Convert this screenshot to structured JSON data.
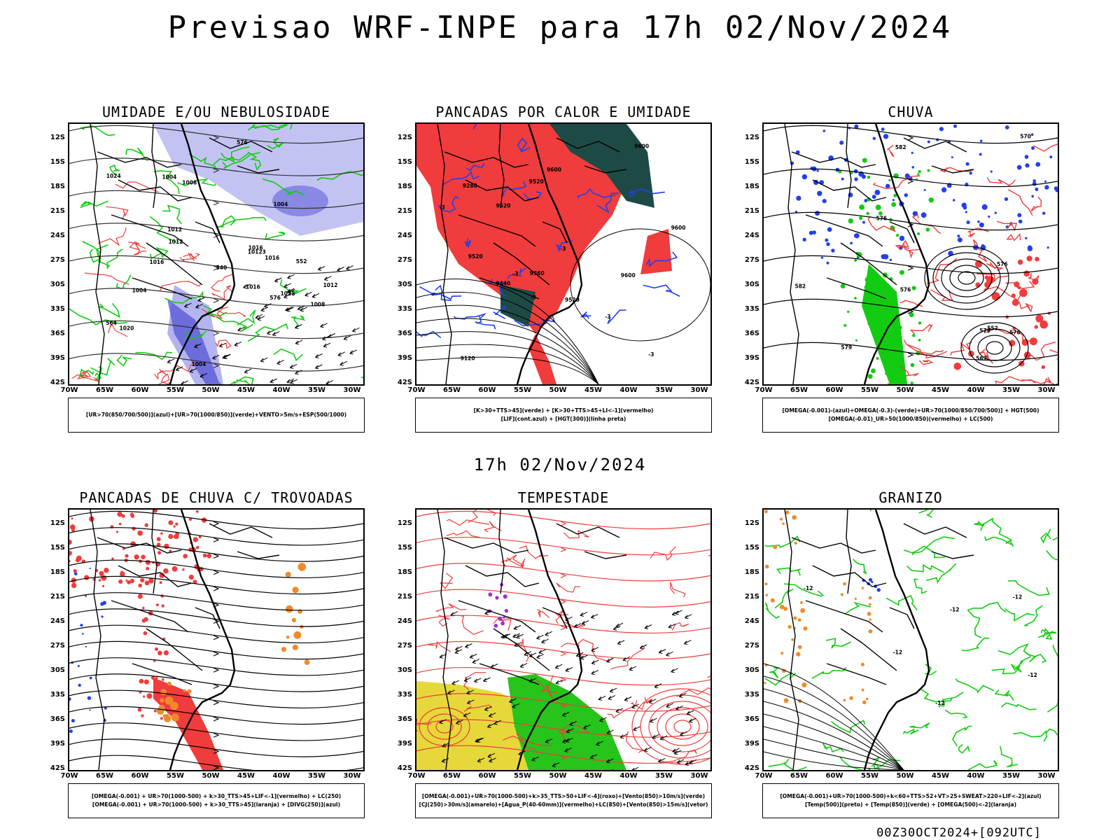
{
  "header": {
    "title": "Previsao WRF-INPE  para 17h 02/Nov/2024"
  },
  "mid_title": "17h 02/Nov/2024",
  "footer_id": "00Z30OCT2024+[092UTC]",
  "lat_ticks": [
    "12S",
    "15S",
    "18S",
    "21S",
    "24S",
    "27S",
    "30S",
    "33S",
    "36S",
    "39S",
    "42S"
  ],
  "lon_ticks": [
    "70W",
    "65W",
    "60W",
    "55W",
    "50W",
    "45W",
    "40W",
    "35W",
    "30W"
  ],
  "panels": [
    {
      "title": "UMIDADE E/OU NEBULOSIDADE",
      "legend": [
        "[UR>70(850/700/500)](azul)+[UR>70(1000/850)](verde)+VENTO>5m/s+ESP(500/1000)"
      ],
      "contour_labels": [
        "1004",
        "1004",
        "1008",
        "1004",
        "1012",
        "1016",
        "1012",
        "1016",
        "1004",
        "1008",
        "10123",
        "1020",
        "1024",
        "1016",
        "1012",
        "1028",
        "1016",
        "540",
        "552",
        "576",
        "576",
        "564"
      ]
    },
    {
      "title": "PANCADAS POR CALOR E UMIDADE",
      "legend": [
        "[K>30+TTS>45](verde) + [K>30+TTS>45+LI<-1](vermelho)",
        "[LIF](cont.azul) + [HGT(300)](linha preta)"
      ],
      "contour_labels": [
        "9600",
        "9600",
        "9600",
        "9520",
        "9600",
        "9520",
        "9520",
        "9440",
        "9360",
        "9280",
        "9120",
        "9520",
        "-3",
        "-3",
        "-3",
        "-3",
        "-3",
        "-3"
      ]
    },
    {
      "title": "CHUVA",
      "legend": [
        "[OMEGA(-0.001)-(azul)+OMEGA(-0.3)-(verde)+UR>70(1000/850/700/500)] + HGT(500)",
        "[OMEGA(-0.01)_UR>50(1000/850)(vermelho) + LC(500)"
      ],
      "contour_labels": [
        "582",
        "576",
        "579",
        "570",
        "567",
        "576",
        "579",
        "552",
        "576",
        "582",
        "576"
      ]
    },
    {
      "title": "PANCADAS DE CHUVA C/ TROVOADAS",
      "legend": [
        "[OMEGA(-0.001) + UR>70(1000-500) + k>30_TTS>45+LIF<-1](vermelho) + LC(250)",
        "[OMEGA(-0.001) + UR>70(1000-500) + k>30_TTS>45](laranja) + [DIVG(250)](azul)"
      ],
      "contour_labels": []
    },
    {
      "title": "TEMPESTADE",
      "legend": [
        "[OMEGA(-0.001)+UR>70(1000-500)+k>35_TTS>50+LIF<-4](roxo)+[Vento(850)>10m/s](verde)",
        "[CJ(250)>30m/s](amarelo)+[Agua_P(40-60mm)](vermelho)+LC(850)+[Vento(850)>15m/s](vetor)"
      ],
      "contour_labels": []
    },
    {
      "title": "GRANIZO",
      "legend": [
        "[OMEGA(-0.001)+UR>70(1000-500)+k<60+TTS>52+VT>25+SWEAT>220+LIF<-2](azul)",
        "[Temp(500)](preto) + [Temp(850)](verde) + [OMEGA(500)<-2](laranja)"
      ],
      "contour_labels": [
        "-12",
        "-12",
        "-12",
        "-12",
        "-12",
        "-12"
      ]
    }
  ],
  "colors": {
    "red": "#f03c3c",
    "green": "#12cc12",
    "blue": "#2040f0",
    "lavender": "#b4b4f0",
    "darkteal": "#1e4a46",
    "yellow": "#e6d83a",
    "orange": "#f08a28",
    "purple": "#9b30d0"
  }
}
